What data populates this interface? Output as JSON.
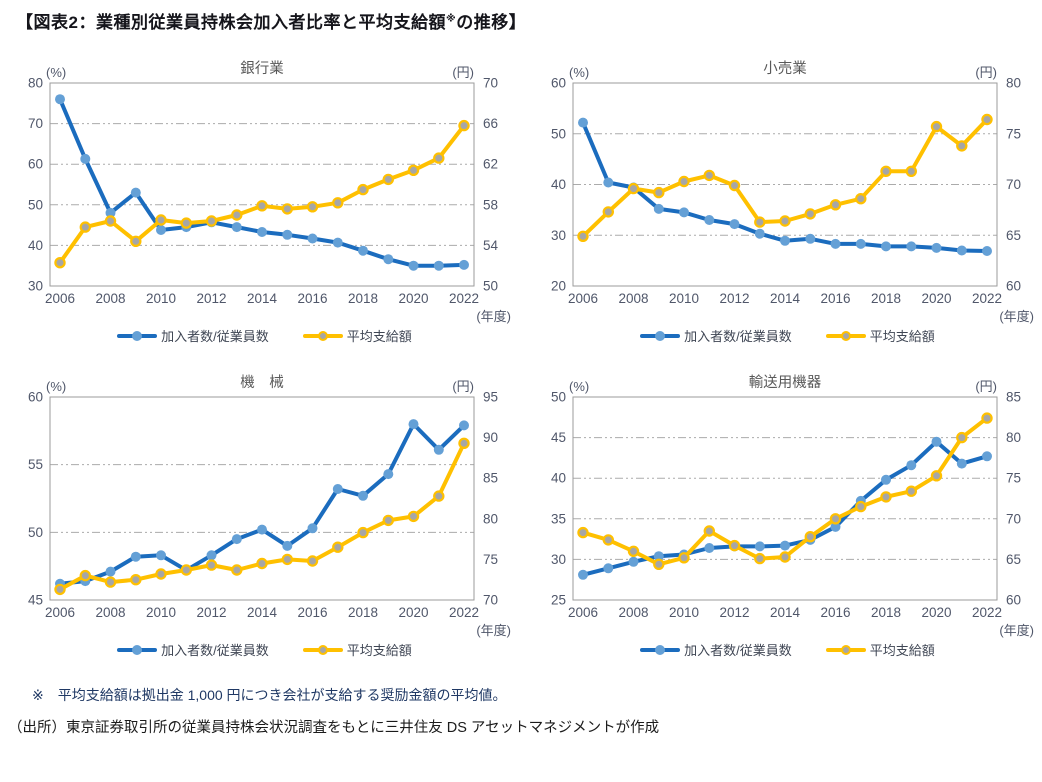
{
  "header": {
    "title_prefix": "【図表2：業種別従業員持株会加入者比率と平均支給額",
    "title_sup": "※",
    "title_suffix": "の推移】"
  },
  "legend": {
    "participation": "加入者数/従業員数",
    "payout": "平均支給額"
  },
  "colors": {
    "participation_line": "#1b6cbe",
    "participation_marker": "#64a0d6",
    "payout_line": "#ffc000",
    "payout_marker": "#a6a6a6",
    "grid": "#ababab",
    "plot_border": "#9b9b9b",
    "tick_text": "#50576a",
    "chart_title_text": "#595959"
  },
  "chart_data": [
    {
      "type": "line",
      "title": "銀行業",
      "x_unit": "(年度)",
      "years": [
        2006,
        2007,
        2008,
        2009,
        2010,
        2011,
        2012,
        2013,
        2014,
        2015,
        2016,
        2017,
        2018,
        2019,
        2020,
        2021,
        2022
      ],
      "x_tick_labels": [
        2006,
        2008,
        2010,
        2012,
        2014,
        2016,
        2018,
        2020,
        2022
      ],
      "left_axis": {
        "unit": "(%)",
        "min": 30,
        "max": 80,
        "step": 10
      },
      "right_axis": {
        "unit": "(円)",
        "min": 50,
        "max": 70,
        "step": 4
      },
      "series": [
        {
          "name": "加入者数/従業員数",
          "axis": "left",
          "values": [
            76.0,
            61.3,
            48.0,
            53.0,
            43.8,
            44.5,
            45.7,
            44.5,
            43.3,
            42.6,
            41.7,
            40.7,
            38.7,
            36.6,
            35.0,
            35.0,
            35.2
          ]
        },
        {
          "name": "平均支給額",
          "axis": "right",
          "values": [
            52.3,
            55.8,
            56.4,
            54.4,
            56.5,
            56.2,
            56.4,
            57.0,
            57.9,
            57.6,
            57.8,
            58.2,
            59.5,
            60.5,
            61.4,
            62.6,
            65.8
          ]
        }
      ]
    },
    {
      "type": "line",
      "title": "小売業",
      "x_unit": "(年度)",
      "years": [
        2006,
        2007,
        2008,
        2009,
        2010,
        2011,
        2012,
        2013,
        2014,
        2015,
        2016,
        2017,
        2018,
        2019,
        2020,
        2021,
        2022
      ],
      "x_tick_labels": [
        2006,
        2008,
        2010,
        2012,
        2014,
        2016,
        2018,
        2020,
        2022
      ],
      "left_axis": {
        "unit": "(%)",
        "min": 20,
        "max": 60,
        "step": 10
      },
      "right_axis": {
        "unit": "(円)",
        "min": 60,
        "max": 80,
        "step": 5
      },
      "series": [
        {
          "name": "加入者数/従業員数",
          "axis": "left",
          "values": [
            52.2,
            40.4,
            39.4,
            35.2,
            34.5,
            33.0,
            32.2,
            30.3,
            28.9,
            29.3,
            28.3,
            28.3,
            27.8,
            27.8,
            27.5,
            27.0,
            26.9
          ]
        },
        {
          "name": "平均支給額",
          "axis": "right",
          "values": [
            64.9,
            67.3,
            69.6,
            69.2,
            70.3,
            70.9,
            69.9,
            66.3,
            66.4,
            67.1,
            68.0,
            68.6,
            71.3,
            71.3,
            75.7,
            73.8,
            76.4
          ]
        }
      ]
    },
    {
      "type": "line",
      "title": "機　械",
      "x_unit": "(年度)",
      "years": [
        2006,
        2007,
        2008,
        2009,
        2010,
        2011,
        2012,
        2013,
        2014,
        2015,
        2016,
        2017,
        2018,
        2019,
        2020,
        2021,
        2022
      ],
      "x_tick_labels": [
        2006,
        2008,
        2010,
        2012,
        2014,
        2016,
        2018,
        2020,
        2022
      ],
      "left_axis": {
        "unit": "(%)",
        "min": 45,
        "max": 60,
        "step": 5
      },
      "right_axis": {
        "unit": "(円)",
        "min": 70,
        "max": 95,
        "step": 5
      },
      "series": [
        {
          "name": "加入者数/従業員数",
          "axis": "left",
          "values": [
            46.2,
            46.4,
            47.1,
            48.2,
            48.3,
            47.2,
            48.3,
            49.5,
            50.2,
            49.0,
            50.3,
            53.2,
            52.7,
            54.3,
            58.0,
            56.1,
            57.9
          ]
        },
        {
          "name": "平均支給額",
          "axis": "right",
          "values": [
            71.3,
            73.0,
            72.2,
            72.5,
            73.2,
            73.7,
            74.3,
            73.7,
            74.5,
            75.0,
            74.8,
            76.5,
            78.3,
            79.8,
            80.3,
            82.8,
            89.3
          ]
        }
      ]
    },
    {
      "type": "line",
      "title": "輸送用機器",
      "x_unit": "(年度)",
      "years": [
        2006,
        2007,
        2008,
        2009,
        2010,
        2011,
        2012,
        2013,
        2014,
        2015,
        2016,
        2017,
        2018,
        2019,
        2020,
        2021,
        2022
      ],
      "x_tick_labels": [
        2006,
        2008,
        2010,
        2012,
        2014,
        2016,
        2018,
        2020,
        2022
      ],
      "left_axis": {
        "unit": "(%)",
        "min": 25,
        "max": 50,
        "step": 5
      },
      "right_axis": {
        "unit": "(円)",
        "min": 60,
        "max": 85,
        "step": 5
      },
      "series": [
        {
          "name": "加入者数/従業員数",
          "axis": "left",
          "values": [
            28.1,
            28.9,
            29.7,
            30.4,
            30.6,
            31.4,
            31.6,
            31.6,
            31.7,
            32.4,
            34.0,
            37.2,
            39.8,
            41.6,
            44.5,
            41.8,
            42.7
          ]
        },
        {
          "name": "平均支給額",
          "axis": "right",
          "values": [
            68.3,
            67.4,
            66.0,
            64.4,
            65.2,
            68.5,
            66.7,
            65.1,
            65.3,
            67.8,
            70.0,
            71.5,
            72.7,
            73.4,
            75.3,
            80.0,
            82.4
          ]
        }
      ]
    }
  ],
  "footer": {
    "note_mark": "※",
    "note_text": "平均支給額は拠出金 1,000 円につき会社が支給する奨励金額の平均値。",
    "source": "（出所）東京証券取引所の従業員持株会状況調査をもとに三井住友 DS アセットマネジメントが作成"
  }
}
